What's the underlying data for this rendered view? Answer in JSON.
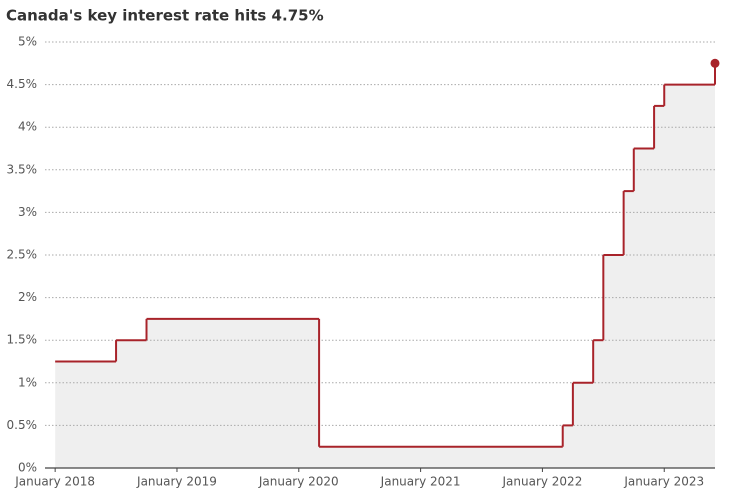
{
  "chart_data": {
    "type": "step-line",
    "title": "Canada's key interest rate hits 4.75%",
    "x": [
      "2018-01",
      "2018-07",
      "2018-10",
      "2020-03",
      "2022-03",
      "2022-04",
      "2022-06",
      "2022-07",
      "2022-09",
      "2022-10",
      "2022-12",
      "2023-01",
      "2023-06"
    ],
    "series": [
      {
        "name": "Key interest rate",
        "color": "#a8232a",
        "values": [
          1.25,
          1.5,
          1.75,
          0.25,
          0.5,
          1.0,
          1.5,
          2.5,
          3.25,
          3.75,
          4.25,
          4.5,
          4.75
        ]
      }
    ],
    "xlim": [
      "2017-12",
      "2023-06"
    ],
    "xticks": [
      {
        "value": "2018-01",
        "label": "January 2018"
      },
      {
        "value": "2019-01",
        "label": "January 2019"
      },
      {
        "value": "2020-01",
        "label": "January 2020"
      },
      {
        "value": "2021-01",
        "label": "January 2021"
      },
      {
        "value": "2022-01",
        "label": "January 2022"
      },
      {
        "value": "2023-01",
        "label": "January 2023"
      }
    ],
    "ylim": [
      0,
      5
    ],
    "yticks": [
      {
        "value": 0,
        "label": "0%"
      },
      {
        "value": 0.5,
        "label": "0.5%"
      },
      {
        "value": 1,
        "label": "1%"
      },
      {
        "value": 1.5,
        "label": "1.5%"
      },
      {
        "value": 2,
        "label": "2%"
      },
      {
        "value": 2.5,
        "label": "2.5%"
      },
      {
        "value": 3,
        "label": "3%"
      },
      {
        "value": 3.5,
        "label": "3.5%"
      },
      {
        "value": 4,
        "label": "4%"
      },
      {
        "value": 4.5,
        "label": "4.5%"
      },
      {
        "value": 5,
        "label": "5%"
      }
    ],
    "grid": true,
    "fill": "#efefef"
  }
}
